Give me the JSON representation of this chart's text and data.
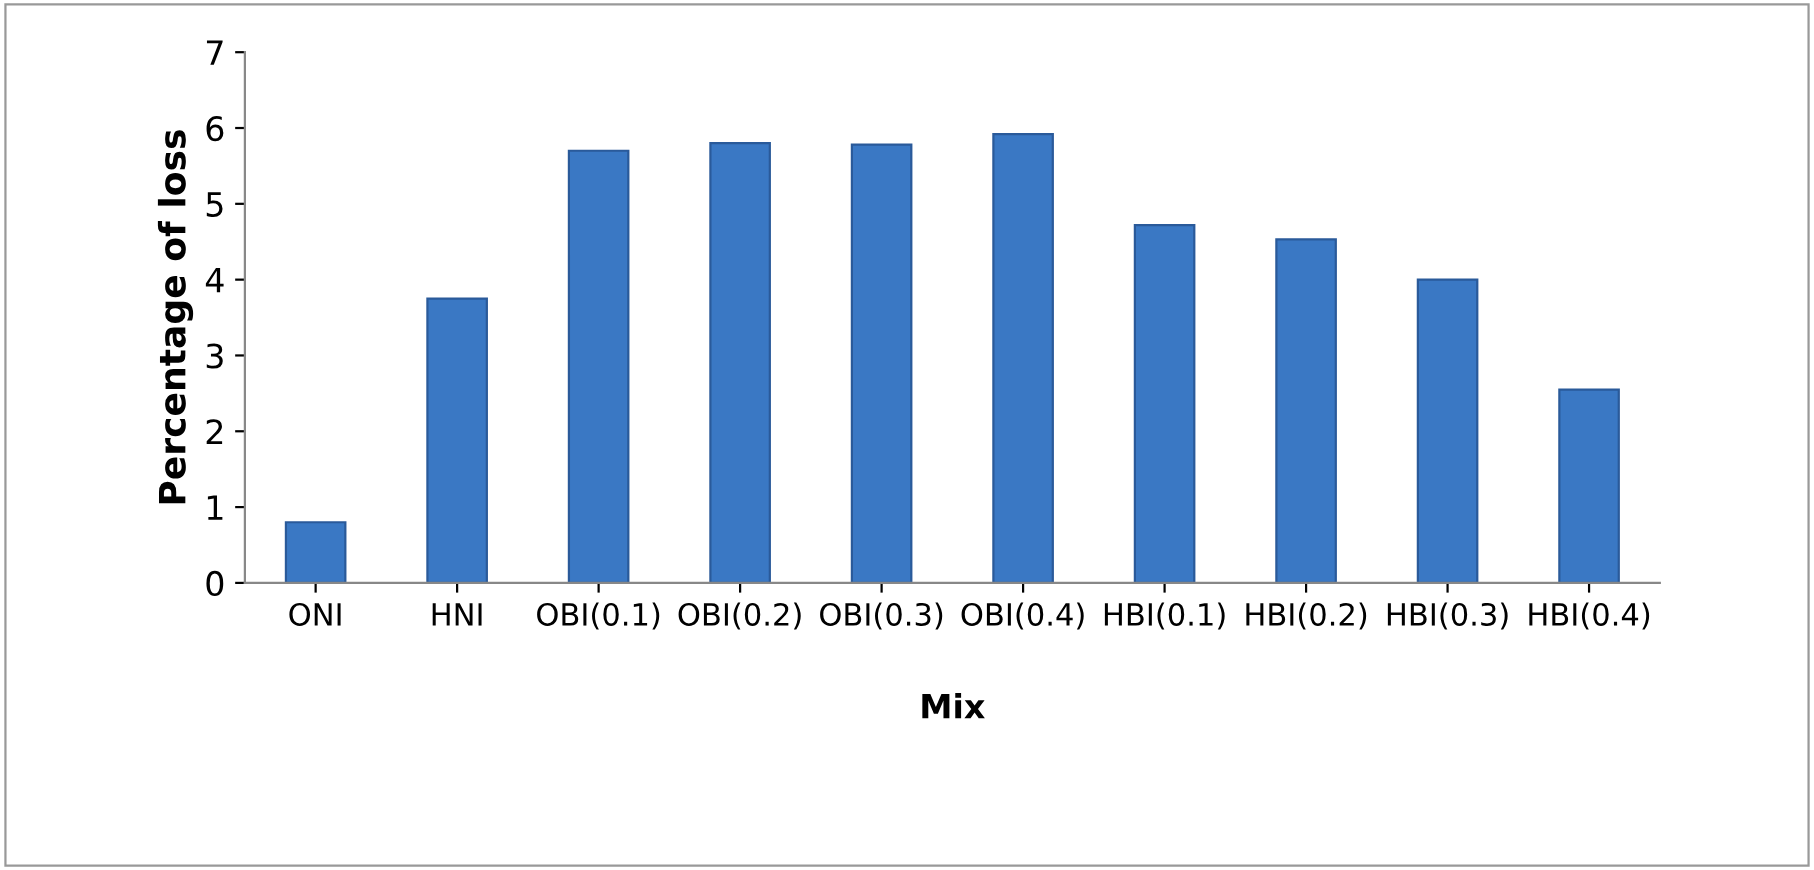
{
  "chart_data": {
    "type": "bar",
    "xlabel": "Mix",
    "ylabel": "Percentage of loss",
    "categories": [
      "ONI",
      "HNI",
      "OBI(0.1)",
      "OBI(0.2)",
      "OBI(0.3)",
      "OBI(0.4)",
      "HBI(0.1)",
      "HBI(0.2)",
      "HBI(0.3)",
      "HBI(0.4)"
    ],
    "values": [
      0.8,
      3.75,
      5.7,
      5.8,
      5.78,
      5.92,
      4.72,
      4.53,
      4.0,
      2.55
    ],
    "color": "#3a78c4",
    "ylim": [
      0,
      7
    ],
    "yticks": [
      0,
      1,
      2,
      3,
      4,
      5,
      6,
      7
    ],
    "grid": false,
    "legend": false
  }
}
